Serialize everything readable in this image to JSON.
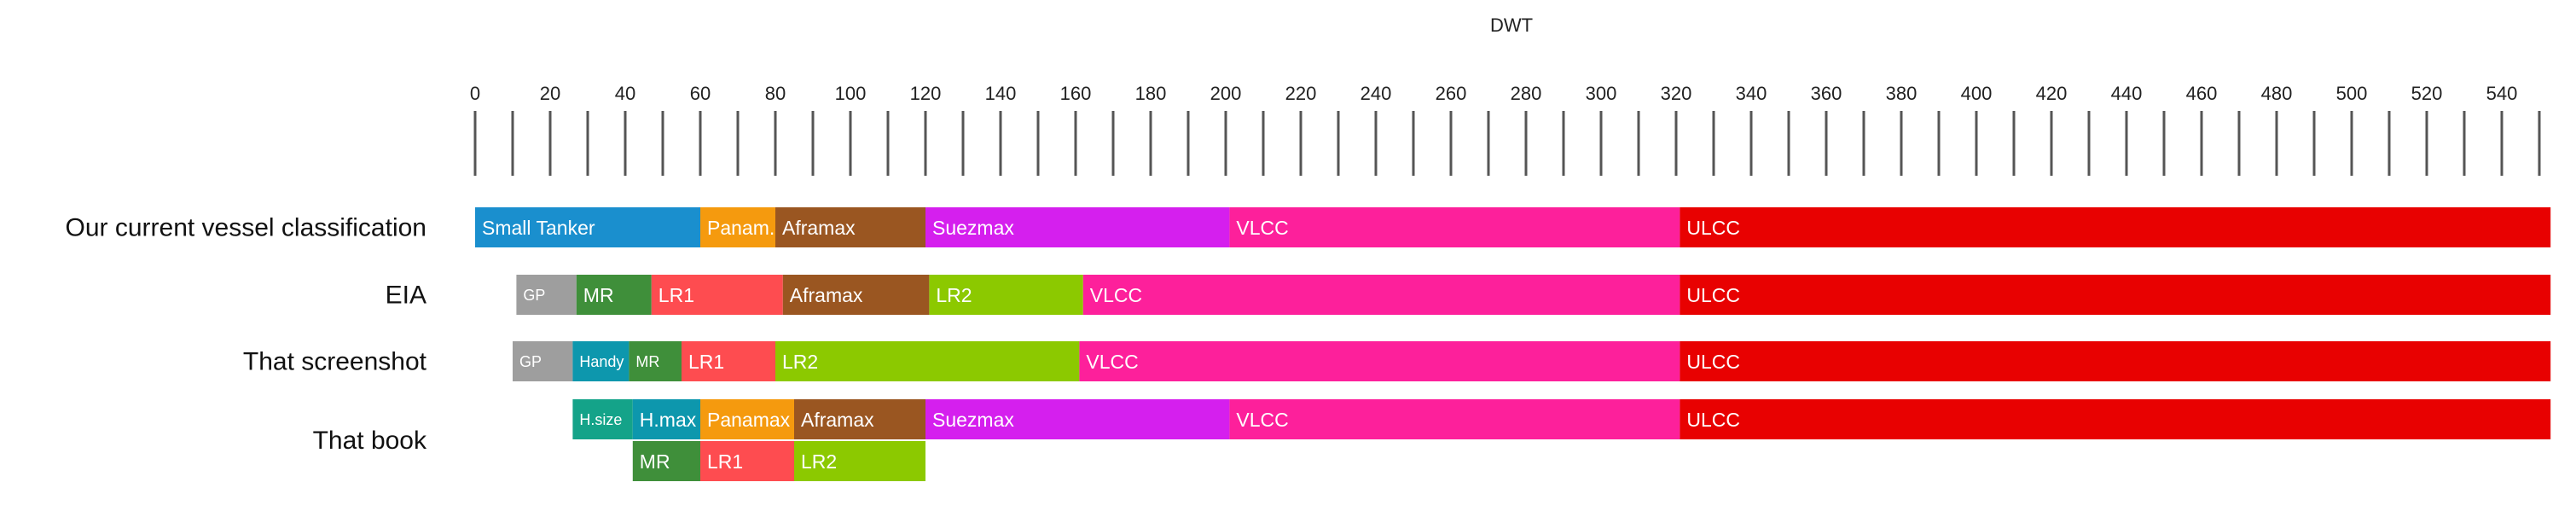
{
  "chart_data": {
    "type": "bar",
    "title": "",
    "xlabel": "DWT",
    "ylabel": "",
    "xlim": [
      0,
      550
    ],
    "ticks": [
      0,
      20,
      40,
      60,
      80,
      100,
      120,
      140,
      160,
      180,
      200,
      220,
      240,
      260,
      280,
      300,
      320,
      340,
      360,
      380,
      400,
      420,
      440,
      460,
      480,
      500,
      520,
      540
    ],
    "minor_tick_step": 10,
    "grid": false,
    "rows": [
      {
        "label": "Our current vessel classification",
        "lanes": [
          [
            {
              "label": "Small Tanker",
              "start": 0,
              "end": 60,
              "color": "#1a8fce"
            },
            {
              "label": "Panam.",
              "start": 60,
              "end": 80,
              "color": "#f59a0e"
            },
            {
              "label": "Aframax",
              "start": 80,
              "end": 120,
              "color": "#9a5621"
            },
            {
              "label": "Suezmax",
              "start": 120,
              "end": 201,
              "color": "#d51fee"
            },
            {
              "label": "VLCC",
              "start": 201,
              "end": 321,
              "color": "#fd209b"
            },
            {
              "label": "ULCC",
              "start": 321,
              "end": 553,
              "color": "#e80101"
            }
          ]
        ]
      },
      {
        "label": "EIA",
        "lanes": [
          [
            {
              "label": "GP",
              "start": 11,
              "end": 27,
              "color": "#9e9e9e"
            },
            {
              "label": "MR",
              "start": 27,
              "end": 47,
              "color": "#3f8f3a"
            },
            {
              "label": "LR1",
              "start": 47,
              "end": 82,
              "color": "#fe4c50"
            },
            {
              "label": "Aframax",
              "start": 82,
              "end": 121,
              "color": "#9a5621"
            },
            {
              "label": "LR2",
              "start": 121,
              "end": 162,
              "color": "#8cc900"
            },
            {
              "label": "VLCC",
              "start": 162,
              "end": 321,
              "color": "#fd209b"
            },
            {
              "label": "ULCC",
              "start": 321,
              "end": 553,
              "color": "#e80101"
            }
          ]
        ]
      },
      {
        "label": "That screenshot",
        "lanes": [
          [
            {
              "label": "GP",
              "start": 10,
              "end": 26,
              "color": "#9e9e9e"
            },
            {
              "label": "Handy",
              "start": 26,
              "end": 41,
              "color": "#0d97ad"
            },
            {
              "label": "MR",
              "start": 41,
              "end": 55,
              "color": "#3f8f3a"
            },
            {
              "label": "LR1",
              "start": 55,
              "end": 80,
              "color": "#fe4c50"
            },
            {
              "label": "LR2",
              "start": 80,
              "end": 161,
              "color": "#8cc900"
            },
            {
              "label": "VLCC",
              "start": 161,
              "end": 321,
              "color": "#fd209b"
            },
            {
              "label": "ULCC",
              "start": 321,
              "end": 553,
              "color": "#e80101"
            }
          ]
        ]
      },
      {
        "label": "That book",
        "lanes": [
          [
            {
              "label": "H.size",
              "start": 26,
              "end": 42,
              "color": "#14a389"
            },
            {
              "label": "H.max",
              "start": 42,
              "end": 60,
              "color": "#0d97ad"
            },
            {
              "label": "Panamax",
              "start": 60,
              "end": 85,
              "color": "#f59a0e"
            },
            {
              "label": "Aframax",
              "start": 85,
              "end": 120,
              "color": "#9a5621"
            },
            {
              "label": "Suezmax",
              "start": 120,
              "end": 201,
              "color": "#d51fee"
            },
            {
              "label": "VLCC",
              "start": 201,
              "end": 321,
              "color": "#fd209b"
            },
            {
              "label": "ULCC",
              "start": 321,
              "end": 553,
              "color": "#e80101"
            }
          ],
          [
            {
              "label": "MR",
              "start": 42,
              "end": 60,
              "color": "#3f8f3a"
            },
            {
              "label": "LR1",
              "start": 60,
              "end": 85,
              "color": "#fe4c50"
            },
            {
              "label": "LR2",
              "start": 85,
              "end": 120,
              "color": "#8cc900"
            }
          ]
        ]
      }
    ]
  }
}
